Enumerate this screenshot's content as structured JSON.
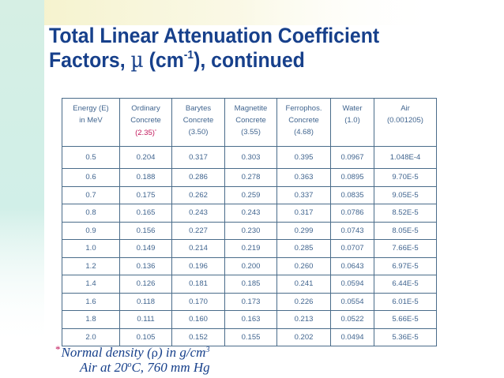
{
  "title": {
    "line1": "Total Linear Attenuation Coefficient",
    "line2_prefix": "Factors, ",
    "mu": "µ",
    "line2_unit": " (cm",
    "line2_exp": "-1",
    "line2_suffix": "), continued"
  },
  "table": {
    "headers": [
      {
        "line1": "Energy (E)",
        "line2": "in MeV"
      },
      {
        "line1": "Ordinary",
        "line2": "Concrete",
        "line3": "(2.35)",
        "star": "*"
      },
      {
        "line1": "Barytes",
        "line2": "Concrete",
        "line3": "(3.50)"
      },
      {
        "line1": "Magnetite",
        "line2": "Concrete",
        "line3": "(3.55)"
      },
      {
        "line1": "Ferrophos.",
        "line2": "Concrete",
        "line3": "(4.68)"
      },
      {
        "line1": "Water",
        "line2": "(1.0)"
      },
      {
        "line1": "Air",
        "line2": "(0.001205)"
      }
    ],
    "rows": [
      [
        "0.5",
        "0.204",
        "0.317",
        "0.303",
        "0.395",
        "0.0967",
        "1.048E-4"
      ],
      [
        "0.6",
        "0.188",
        "0.286",
        "0.278",
        "0.363",
        "0.0895",
        "9.70E-5"
      ],
      [
        "0.7",
        "0.175",
        "0.262",
        "0.259",
        "0.337",
        "0.0835",
        "9.05E-5"
      ],
      [
        "0.8",
        "0.165",
        "0.243",
        "0.243",
        "0.317",
        "0.0786",
        "8.52E-5"
      ],
      [
        "0.9",
        "0.156",
        "0.227",
        "0.230",
        "0.299",
        "0.0743",
        "8.05E-5"
      ],
      [
        "1.0",
        "0.149",
        "0.214",
        "0.219",
        "0.285",
        "0.0707",
        "7.66E-5"
      ],
      [
        "1.2",
        "0.136",
        "0.196",
        "0.200",
        "0.260",
        "0.0643",
        "6.97E-5"
      ],
      [
        "1.4",
        "0.126",
        "0.181",
        "0.185",
        "0.241",
        "0.0594",
        "6.44E-5"
      ],
      [
        "1.6",
        "0.118",
        "0.170",
        "0.173",
        "0.226",
        "0.0554",
        "6.01E-5"
      ],
      [
        "1.8",
        "0.111",
        "0.160",
        "0.163",
        "0.213",
        "0.0522",
        "5.66E-5"
      ],
      [
        "2.0",
        "0.105",
        "0.152",
        "0.155",
        "0.202",
        "0.0494",
        "5.36E-5"
      ]
    ]
  },
  "notes": {
    "star": "*",
    "line1_a": "Normal density (",
    "rho": "ρ",
    "line1_b": ") in g/cm",
    "line1_exp": "3",
    "line2_a": "Air at 20",
    "line2_exp": "o",
    "line2_b": "C, 760 mm Hg"
  },
  "colors": {
    "title": "#17408b",
    "table_text": "#41658f",
    "accent_pink": "#c2185b",
    "wash_left": "#c9ece4",
    "wash_top": "#f4f1c8"
  }
}
